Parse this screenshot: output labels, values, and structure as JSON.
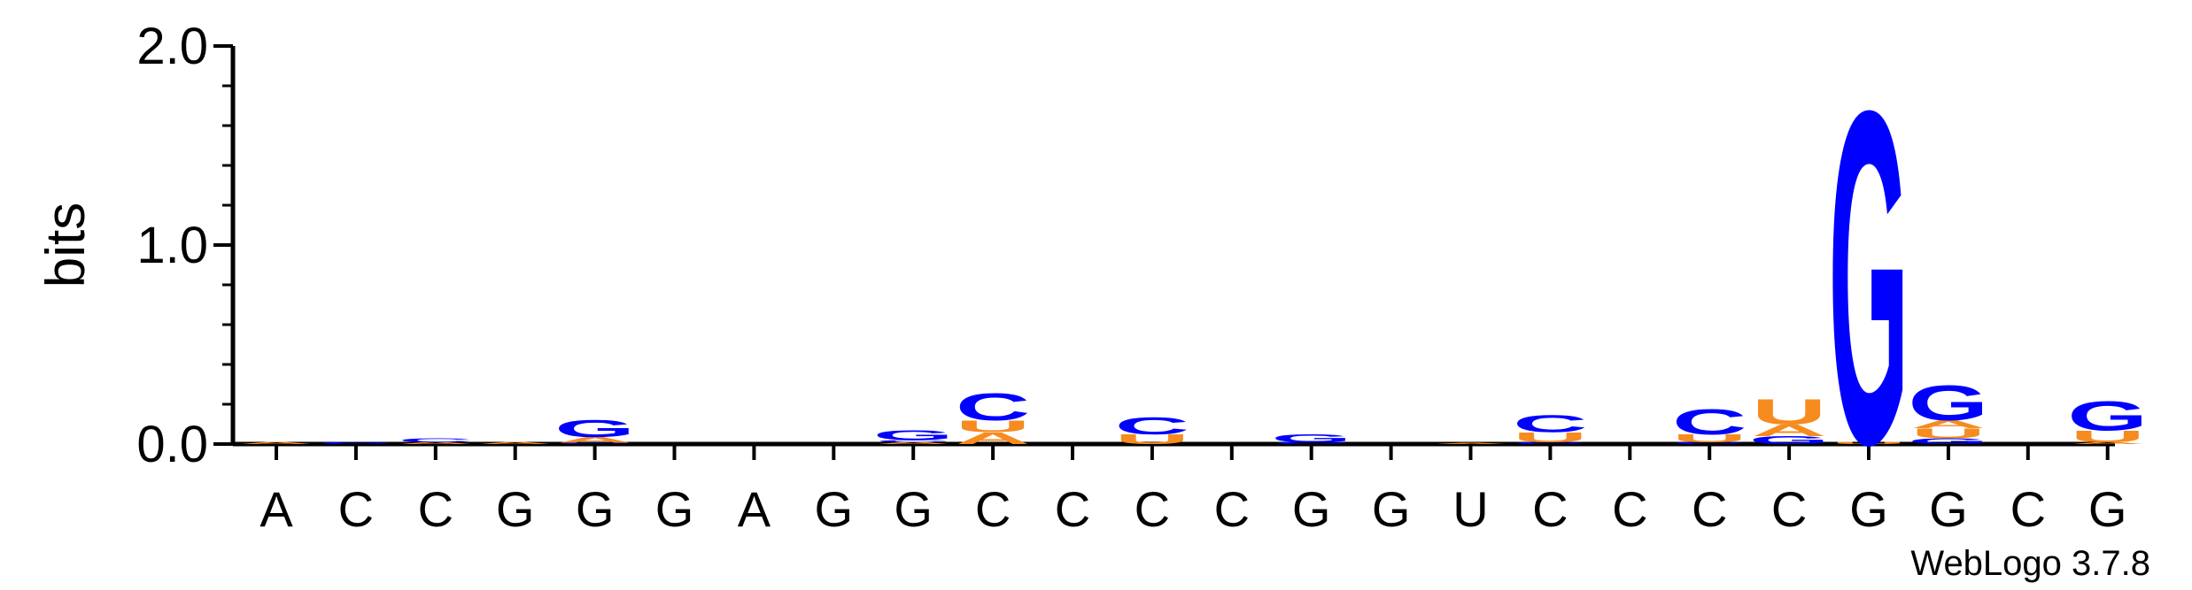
{
  "chart_data": {
    "type": "sequence-logo",
    "ylabel": "bits",
    "ylim": [
      0,
      2.0
    ],
    "yticks": [
      "0.0",
      "1.0",
      "2.0"
    ],
    "credit": "WebLogo 3.7.8",
    "colors": {
      "A": "#f68b1f",
      "U": "#f68b1f",
      "C": "#0000ff",
      "G": "#0000ff"
    },
    "sequence": [
      "A",
      "C",
      "C",
      "G",
      "G",
      "G",
      "A",
      "G",
      "G",
      "C",
      "C",
      "C",
      "C",
      "G",
      "G",
      "U",
      "C",
      "C",
      "C",
      "C",
      "G",
      "G",
      "C",
      "G"
    ],
    "stacks": [
      [
        [
          "A",
          0.01
        ]
      ],
      [
        [
          "C",
          0.01
        ]
      ],
      [
        [
          "A",
          0.01
        ],
        [
          "C",
          0.02
        ]
      ],
      [
        [
          "A",
          0.01
        ]
      ],
      [
        [
          "C",
          0.005
        ],
        [
          "A",
          0.03
        ],
        [
          "G",
          0.09
        ]
      ],
      [],
      [],
      [],
      [
        [
          "A",
          0.01
        ],
        [
          "C",
          0.01
        ],
        [
          "G",
          0.05
        ]
      ],
      [
        [
          "A",
          0.06
        ],
        [
          "U",
          0.06
        ],
        [
          "C",
          0.14
        ]
      ],
      [],
      [
        [
          "U",
          0.05
        ],
        [
          "C",
          0.09
        ]
      ],
      [],
      [
        [
          "C",
          0.01
        ],
        [
          "G",
          0.04
        ]
      ],
      [],
      [
        [
          "A",
          0.005
        ]
      ],
      [
        [
          "C",
          0.01
        ],
        [
          "U",
          0.05
        ],
        [
          "C",
          0.09
        ]
      ],
      [],
      [
        [
          "C",
          0.01
        ],
        [
          "U",
          0.04
        ],
        [
          "C",
          0.13
        ]
      ],
      [
        [
          "G",
          0.04
        ],
        [
          "A",
          0.06
        ],
        [
          "U",
          0.13
        ]
      ],
      [
        [
          "U",
          0.01
        ],
        [
          "G",
          1.72
        ]
      ],
      [
        [
          "G",
          0.03
        ],
        [
          "U",
          0.05
        ],
        [
          "A",
          0.04
        ],
        [
          "G",
          0.18
        ]
      ],
      [],
      [
        [
          "A",
          0.01
        ],
        [
          "U",
          0.06
        ],
        [
          "G",
          0.15
        ]
      ]
    ]
  }
}
